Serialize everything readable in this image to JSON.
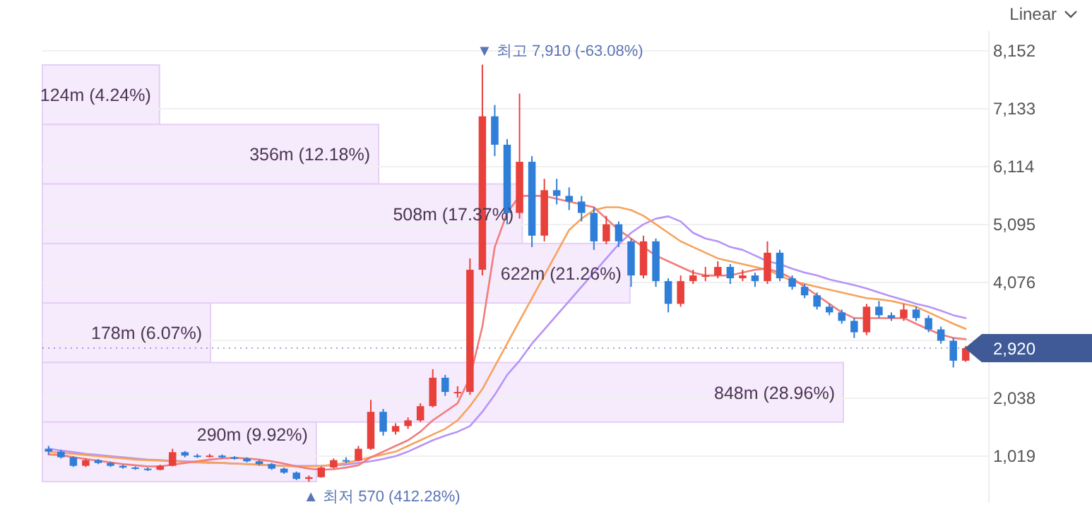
{
  "chart_data": [
    {
      "type": "candlestick",
      "categories": [
        null,
        null,
        null,
        null,
        null,
        null,
        null,
        null,
        null,
        null,
        null,
        null,
        null,
        null,
        null,
        null,
        null,
        null,
        null,
        null,
        null,
        null,
        null,
        null,
        null,
        null,
        null,
        null,
        null,
        null,
        null,
        null,
        null,
        null,
        null,
        null,
        null,
        null,
        null,
        null,
        null,
        null,
        null,
        null,
        null,
        null,
        null,
        null,
        null,
        null,
        null,
        null,
        null,
        null,
        null,
        null,
        null,
        null,
        null,
        null,
        null,
        null,
        null,
        null,
        null,
        null,
        null,
        null,
        null,
        null,
        null,
        null,
        null,
        null,
        null
      ],
      "ohlc": [
        [
          1150,
          1200,
          1050,
          1100
        ],
        [
          1100,
          1130,
          980,
          1000
        ],
        [
          1000,
          1020,
          830,
          850
        ],
        [
          850,
          980,
          830,
          950
        ],
        [
          950,
          970,
          880,
          900
        ],
        [
          900,
          920,
          830,
          850
        ],
        [
          850,
          870,
          800,
          820
        ],
        [
          820,
          840,
          780,
          800
        ],
        [
          800,
          820,
          760,
          780
        ],
        [
          780,
          870,
          770,
          850
        ],
        [
          850,
          1150,
          840,
          1090
        ],
        [
          1090,
          1110,
          1000,
          1030
        ],
        [
          1030,
          1060,
          990,
          1010
        ],
        [
          1010,
          1060,
          1000,
          1030
        ],
        [
          1030,
          1050,
          980,
          1000
        ],
        [
          1000,
          1020,
          960,
          980
        ],
        [
          980,
          1000,
          910,
          930
        ],
        [
          930,
          950,
          860,
          880
        ],
        [
          880,
          900,
          780,
          800
        ],
        [
          800,
          820,
          710,
          730
        ],
        [
          730,
          750,
          600,
          620
        ],
        [
          620,
          680,
          570,
          650
        ],
        [
          650,
          840,
          640,
          820
        ],
        [
          820,
          980,
          800,
          950
        ],
        [
          950,
          1000,
          900,
          940
        ],
        [
          940,
          1200,
          930,
          1150
        ],
        [
          1150,
          2010,
          1130,
          1800
        ],
        [
          1800,
          1850,
          1380,
          1450
        ],
        [
          1450,
          1600,
          1400,
          1550
        ],
        [
          1550,
          1700,
          1500,
          1650
        ],
        [
          1650,
          1950,
          1620,
          1900
        ],
        [
          1900,
          2550,
          1880,
          2400
        ],
        [
          2400,
          2450,
          2080,
          2150
        ],
        [
          2150,
          2250,
          2050,
          2150
        ],
        [
          2150,
          4500,
          2100,
          4300
        ],
        [
          4300,
          7910,
          4200,
          7000
        ],
        [
          7000,
          7200,
          6300,
          6500
        ],
        [
          6500,
          6600,
          5100,
          5300
        ],
        [
          5300,
          7400,
          5200,
          6200
        ],
        [
          6200,
          6300,
          4700,
          4900
        ],
        [
          4900,
          5900,
          4800,
          5700
        ],
        [
          5700,
          5900,
          5450,
          5600
        ],
        [
          5600,
          5750,
          5350,
          5500
        ],
        [
          5500,
          5600,
          5150,
          5300
        ],
        [
          5300,
          5400,
          4650,
          4800
        ],
        [
          4800,
          5250,
          4750,
          5100
        ],
        [
          5100,
          5150,
          4700,
          4800
        ],
        [
          4800,
          4850,
          4000,
          4200
        ],
        [
          4200,
          4900,
          4150,
          4800
        ],
        [
          4800,
          4850,
          4000,
          4100
        ],
        [
          4100,
          4150,
          3550,
          3700
        ],
        [
          3700,
          4200,
          3650,
          4100
        ],
        [
          4100,
          4300,
          4050,
          4200
        ],
        [
          4200,
          4350,
          4100,
          4200
        ],
        [
          4200,
          4450,
          4150,
          4350
        ],
        [
          4350,
          4400,
          4050,
          4150
        ],
        [
          4150,
          4300,
          4100,
          4200
        ],
        [
          4200,
          4250,
          4000,
          4100
        ],
        [
          4100,
          4800,
          4050,
          4600
        ],
        [
          4600,
          4650,
          4100,
          4150
        ],
        [
          4150,
          4200,
          3950,
          4000
        ],
        [
          4000,
          4050,
          3800,
          3850
        ],
        [
          3850,
          3900,
          3600,
          3650
        ],
        [
          3650,
          3700,
          3500,
          3550
        ],
        [
          3550,
          3600,
          3350,
          3400
        ],
        [
          3400,
          3450,
          3100,
          3200
        ],
        [
          3200,
          3700,
          3150,
          3650
        ],
        [
          3650,
          3750,
          3450,
          3500
        ],
        [
          3500,
          3550,
          3400,
          3450
        ],
        [
          3450,
          3700,
          3400,
          3600
        ],
        [
          3600,
          3650,
          3400,
          3450
        ],
        [
          3450,
          3500,
          3200,
          3250
        ],
        [
          3250,
          3300,
          3000,
          3050
        ],
        [
          3050,
          3100,
          2580,
          2700
        ],
        [
          2700,
          2960,
          2680,
          2920
        ]
      ],
      "series": [
        {
          "type": "line",
          "color": "#b794f6",
          "values": [
            1150,
            1120,
            1090,
            1060,
            1040,
            1020,
            1000,
            980,
            960,
            950,
            940,
            930,
            920,
            910,
            900,
            890,
            880,
            870,
            860,
            850,
            850,
            850,
            850,
            860,
            870,
            900,
            930,
            970,
            1020,
            1100,
            1200,
            1300,
            1380,
            1450,
            1550,
            1800,
            2100,
            2450,
            2700,
            3000,
            3250,
            3500,
            3750,
            4000,
            4250,
            4500,
            4750,
            4950,
            5100,
            5200,
            5240,
            5150,
            4950,
            4850,
            4800,
            4700,
            4650,
            4550,
            4450,
            4400,
            4320,
            4250,
            4200,
            4130,
            4080,
            4030,
            3970,
            3900,
            3830,
            3770,
            3700,
            3650,
            3580,
            3500,
            3450
          ]
        },
        {
          "type": "line",
          "color": "#f7a35c",
          "values": [
            1100,
            1080,
            1060,
            1040,
            1020,
            1000,
            980,
            960,
            950,
            940,
            930,
            920,
            910,
            900,
            900,
            890,
            880,
            870,
            860,
            850,
            840,
            840,
            850,
            870,
            900,
            950,
            1000,
            1050,
            1100,
            1200,
            1300,
            1400,
            1500,
            1650,
            1900,
            2200,
            2600,
            3000,
            3400,
            3800,
            4200,
            4600,
            5000,
            5200,
            5350,
            5400,
            5400,
            5350,
            5250,
            5100,
            4950,
            4800,
            4700,
            4600,
            4500,
            4450,
            4400,
            4350,
            4300,
            4200,
            4100,
            4050,
            4000,
            3950,
            3900,
            3850,
            3800,
            3780,
            3750,
            3700,
            3650,
            3550,
            3450,
            3350,
            3260
          ]
        },
        {
          "type": "line",
          "color": "#f27c7c",
          "values": [
            1050,
            1040,
            1000,
            970,
            940,
            910,
            880,
            860,
            840,
            840,
            870,
            900,
            930,
            960,
            980,
            990,
            980,
            960,
            930,
            890,
            840,
            800,
            780,
            790,
            820,
            860,
            1000,
            1100,
            1200,
            1300,
            1450,
            1650,
            1800,
            1950,
            2400,
            3300,
            4700,
            5300,
            5600,
            5600,
            5600,
            5550,
            5500,
            5450,
            5400,
            5200,
            5000,
            4850,
            4700,
            4550,
            4450,
            4350,
            4250,
            4200,
            4200,
            4200,
            4250,
            4300,
            4320,
            4250,
            4150,
            4000,
            3850,
            3700,
            3550,
            3450,
            3450,
            3450,
            3450,
            3450,
            3350,
            3250,
            3160,
            3100,
            3080
          ]
        }
      ],
      "ylim": [
        200,
        8500
      ],
      "yticks": [
        {
          "value": 1019,
          "label": "1,019"
        },
        {
          "value": 2038,
          "label": "2,038"
        },
        {
          "value": 3057,
          "label": null
        },
        {
          "value": 4076,
          "label": "4,076"
        },
        {
          "value": 5095,
          "label": "5,095"
        },
        {
          "value": 6114,
          "label": "6,114"
        },
        {
          "value": 7133,
          "label": "7,133"
        },
        {
          "value": 8152,
          "label": "8,152"
        }
      ],
      "grid": "y",
      "ref_lines": [
        {
          "axis": "y",
          "value": 2920,
          "label": "2,920",
          "color": "#3f5a96"
        }
      ],
      "annotations": [
        "▼ 최고 7,910 (-63.08%)",
        "▲ 최저 570 (412.28%)",
        "Linear"
      ]
    },
    {
      "type": "bar",
      "orientation": "horizontal",
      "color": "#f6eafd",
      "categories": [
        null,
        null,
        null,
        null,
        null,
        null,
        null
      ],
      "values": [
        124000000,
        356000000,
        508000000,
        622000000,
        178000000,
        848000000,
        290000000
      ],
      "value_labels": [
        "124m (4.24%)",
        "356m (12.18%)",
        "508m (17.37%)",
        "622m (21.26%)",
        "178m (6.07%)",
        "848m (28.96%)",
        "290m (9.92%)"
      ]
    }
  ]
}
